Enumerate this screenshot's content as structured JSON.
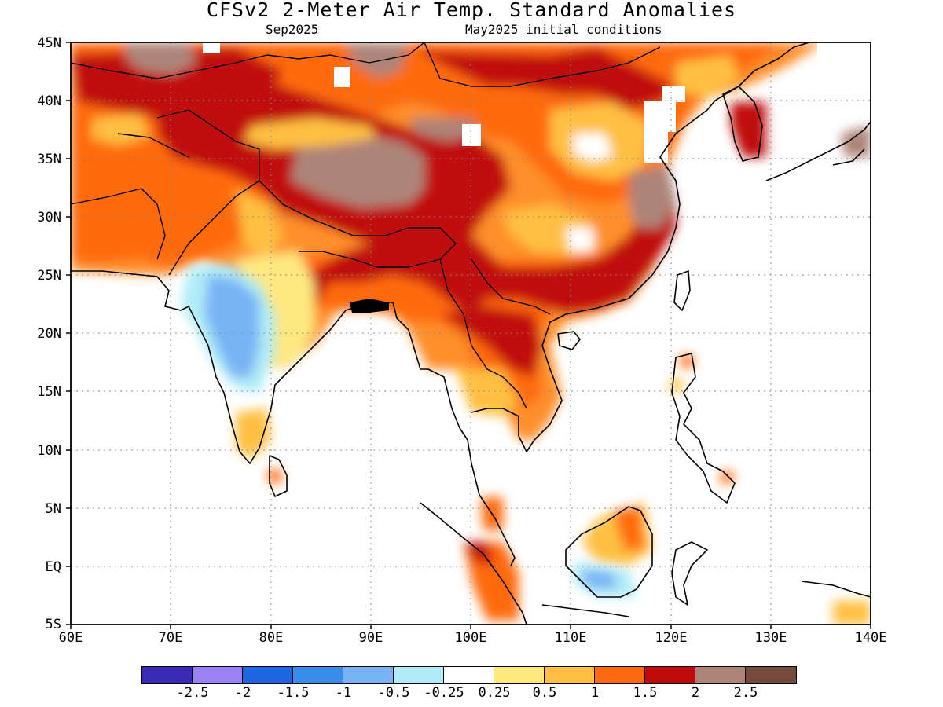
{
  "title": "CFSv2 2-Meter Air Temp. Standard Anomalies",
  "subtitle_left": "Sep2025",
  "subtitle_right": "May2025 initial conditions",
  "lat_labels": [
    "45N",
    "40N",
    "35N",
    "30N",
    "25N",
    "20N",
    "15N",
    "10N",
    "5N",
    "EQ",
    "5S"
  ],
  "lon_labels": [
    "60E",
    "70E",
    "80E",
    "90E",
    "100E",
    "110E",
    "120E",
    "130E",
    "140E"
  ],
  "colorbar": {
    "colors": [
      "#3a2bb5",
      "#9a82f2",
      "#1f64e0",
      "#3b8ee8",
      "#78b4f4",
      "#b0ecf7",
      "#ffffff",
      "#ffe880",
      "#ffc042",
      "#ff6a10",
      "#c00a0a",
      "#ad8478",
      "#734a3c"
    ],
    "labels": [
      "-2.5",
      "-2",
      "-1.5",
      "-1",
      "-0.5",
      "-0.25",
      "0.25",
      "0.5",
      "1",
      "1.5",
      "2",
      "2.5"
    ]
  },
  "map_extent": {
    "lon_min": 60,
    "lon_max": 140,
    "lat_min": -5,
    "lat_max": 45
  }
}
